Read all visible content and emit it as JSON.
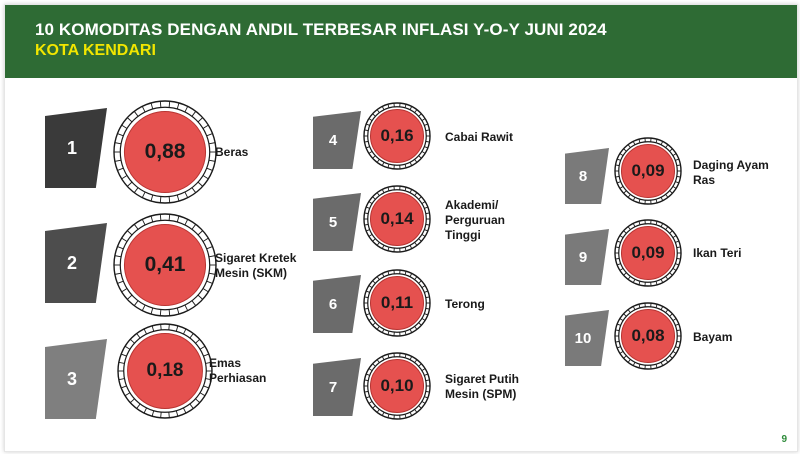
{
  "header": {
    "title": "10 KOMODITAS DENGAN ANDIL TERBESAR INFLASI Y-O-Y JUNI 2024",
    "subtitle": "KOTA KENDARI"
  },
  "items": [
    {
      "rank": "1",
      "value": "0,88",
      "label": "Beras",
      "tag_color": "#3a3a3a"
    },
    {
      "rank": "2",
      "value": "0,41",
      "label": "Sigaret Kretek Mesin (SKM)",
      "tag_color": "#4d4d4d"
    },
    {
      "rank": "3",
      "value": "0,18",
      "label": "Emas Perhiasan",
      "tag_color": "#7f7f7f"
    },
    {
      "rank": "4",
      "value": "0,16",
      "label": "Cabai Rawit",
      "tag_color": "#6b6b6b"
    },
    {
      "rank": "5",
      "value": "0,14",
      "label": "Akademi/ Perguruan Tinggi",
      "tag_color": "#6b6b6b"
    },
    {
      "rank": "6",
      "value": "0,11",
      "label": "Terong",
      "tag_color": "#6b6b6b"
    },
    {
      "rank": "7",
      "value": "0,10",
      "label": "Sigaret Putih Mesin (SPM)",
      "tag_color": "#6b6b6b"
    },
    {
      "rank": "8",
      "value": "0,09",
      "label": "Daging Ayam Ras",
      "tag_color": "#7a7a7a"
    },
    {
      "rank": "9",
      "value": "0,09",
      "label": "Ikan Teri",
      "tag_color": "#7a7a7a"
    },
    {
      "rank": "10",
      "value": "0,08",
      "label": "Bayam",
      "tag_color": "#7a7a7a"
    }
  ],
  "colors": {
    "header_bg": "#2e6b34",
    "subtitle": "#f2e600",
    "circle_fill": "#e5514f",
    "circle_ring": "#1a1a1a"
  },
  "page_number": "9"
}
